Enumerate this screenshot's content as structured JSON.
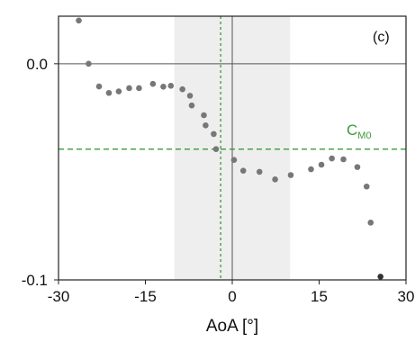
{
  "chart_data": {
    "type": "scatter",
    "panel_label": "(c)",
    "xlabel": "AoA [°]",
    "ylabel": "",
    "xlim": [
      -30,
      30
    ],
    "ylim": [
      -0.1,
      0.022
    ],
    "x_ticks": [
      -30,
      -15,
      0,
      15,
      30
    ],
    "x_tick_labels": [
      "-30",
      "-15",
      "0",
      "15",
      "30"
    ],
    "y_ticks": [
      0.0,
      -0.1
    ],
    "y_tick_labels": [
      "0.0",
      "-0.1"
    ],
    "grid": false,
    "shaded_region": {
      "x_start": -10,
      "x_end": 10,
      "color": "#eeeeee"
    },
    "reference_lines": [
      {
        "orientation": "horizontal",
        "value": 0.0,
        "style": "solid",
        "color": "#555555"
      },
      {
        "orientation": "vertical",
        "value": 0,
        "style": "solid",
        "color": "#555555"
      },
      {
        "orientation": "horizontal",
        "value": -0.0395,
        "style": "dashed",
        "color": "#3a9a3a",
        "label": "C",
        "label_sub": "M0"
      },
      {
        "orientation": "vertical",
        "value": -2,
        "style": "dashed",
        "color": "#3a9a3a"
      }
    ],
    "series": [
      {
        "color": "#777777",
        "points": [
          [
            -26.5,
            0.02
          ],
          [
            -24.8,
            0.0
          ],
          [
            -23.0,
            -0.0105
          ],
          [
            -21.3,
            -0.0135
          ],
          [
            -19.6,
            -0.0128
          ],
          [
            -17.8,
            -0.0113
          ],
          [
            -16.1,
            -0.0113
          ],
          [
            -13.7,
            -0.0093
          ],
          [
            -11.9,
            -0.0106
          ],
          [
            -10.6,
            -0.0102
          ],
          [
            -8.6,
            -0.0118
          ],
          [
            -7.3,
            -0.0148
          ],
          [
            -7.0,
            -0.0193
          ],
          [
            -4.9,
            -0.0238
          ],
          [
            -4.6,
            -0.0285
          ],
          [
            -3.2,
            -0.0325
          ],
          [
            -2.8,
            -0.0395
          ],
          [
            0.3,
            -0.0445
          ],
          [
            1.9,
            -0.0495
          ],
          [
            4.7,
            -0.05
          ],
          [
            7.4,
            -0.0535
          ],
          [
            10.1,
            -0.0515
          ],
          [
            13.6,
            -0.0488
          ],
          [
            15.4,
            -0.0467
          ],
          [
            17.2,
            -0.0438
          ],
          [
            19.2,
            -0.0442
          ],
          [
            21.6,
            -0.0478
          ],
          [
            23.2,
            -0.0568
          ],
          [
            23.9,
            -0.0735
          ]
        ]
      },
      {
        "color": "#333333",
        "points": [
          [
            25.6,
            -0.0985
          ]
        ]
      }
    ]
  }
}
